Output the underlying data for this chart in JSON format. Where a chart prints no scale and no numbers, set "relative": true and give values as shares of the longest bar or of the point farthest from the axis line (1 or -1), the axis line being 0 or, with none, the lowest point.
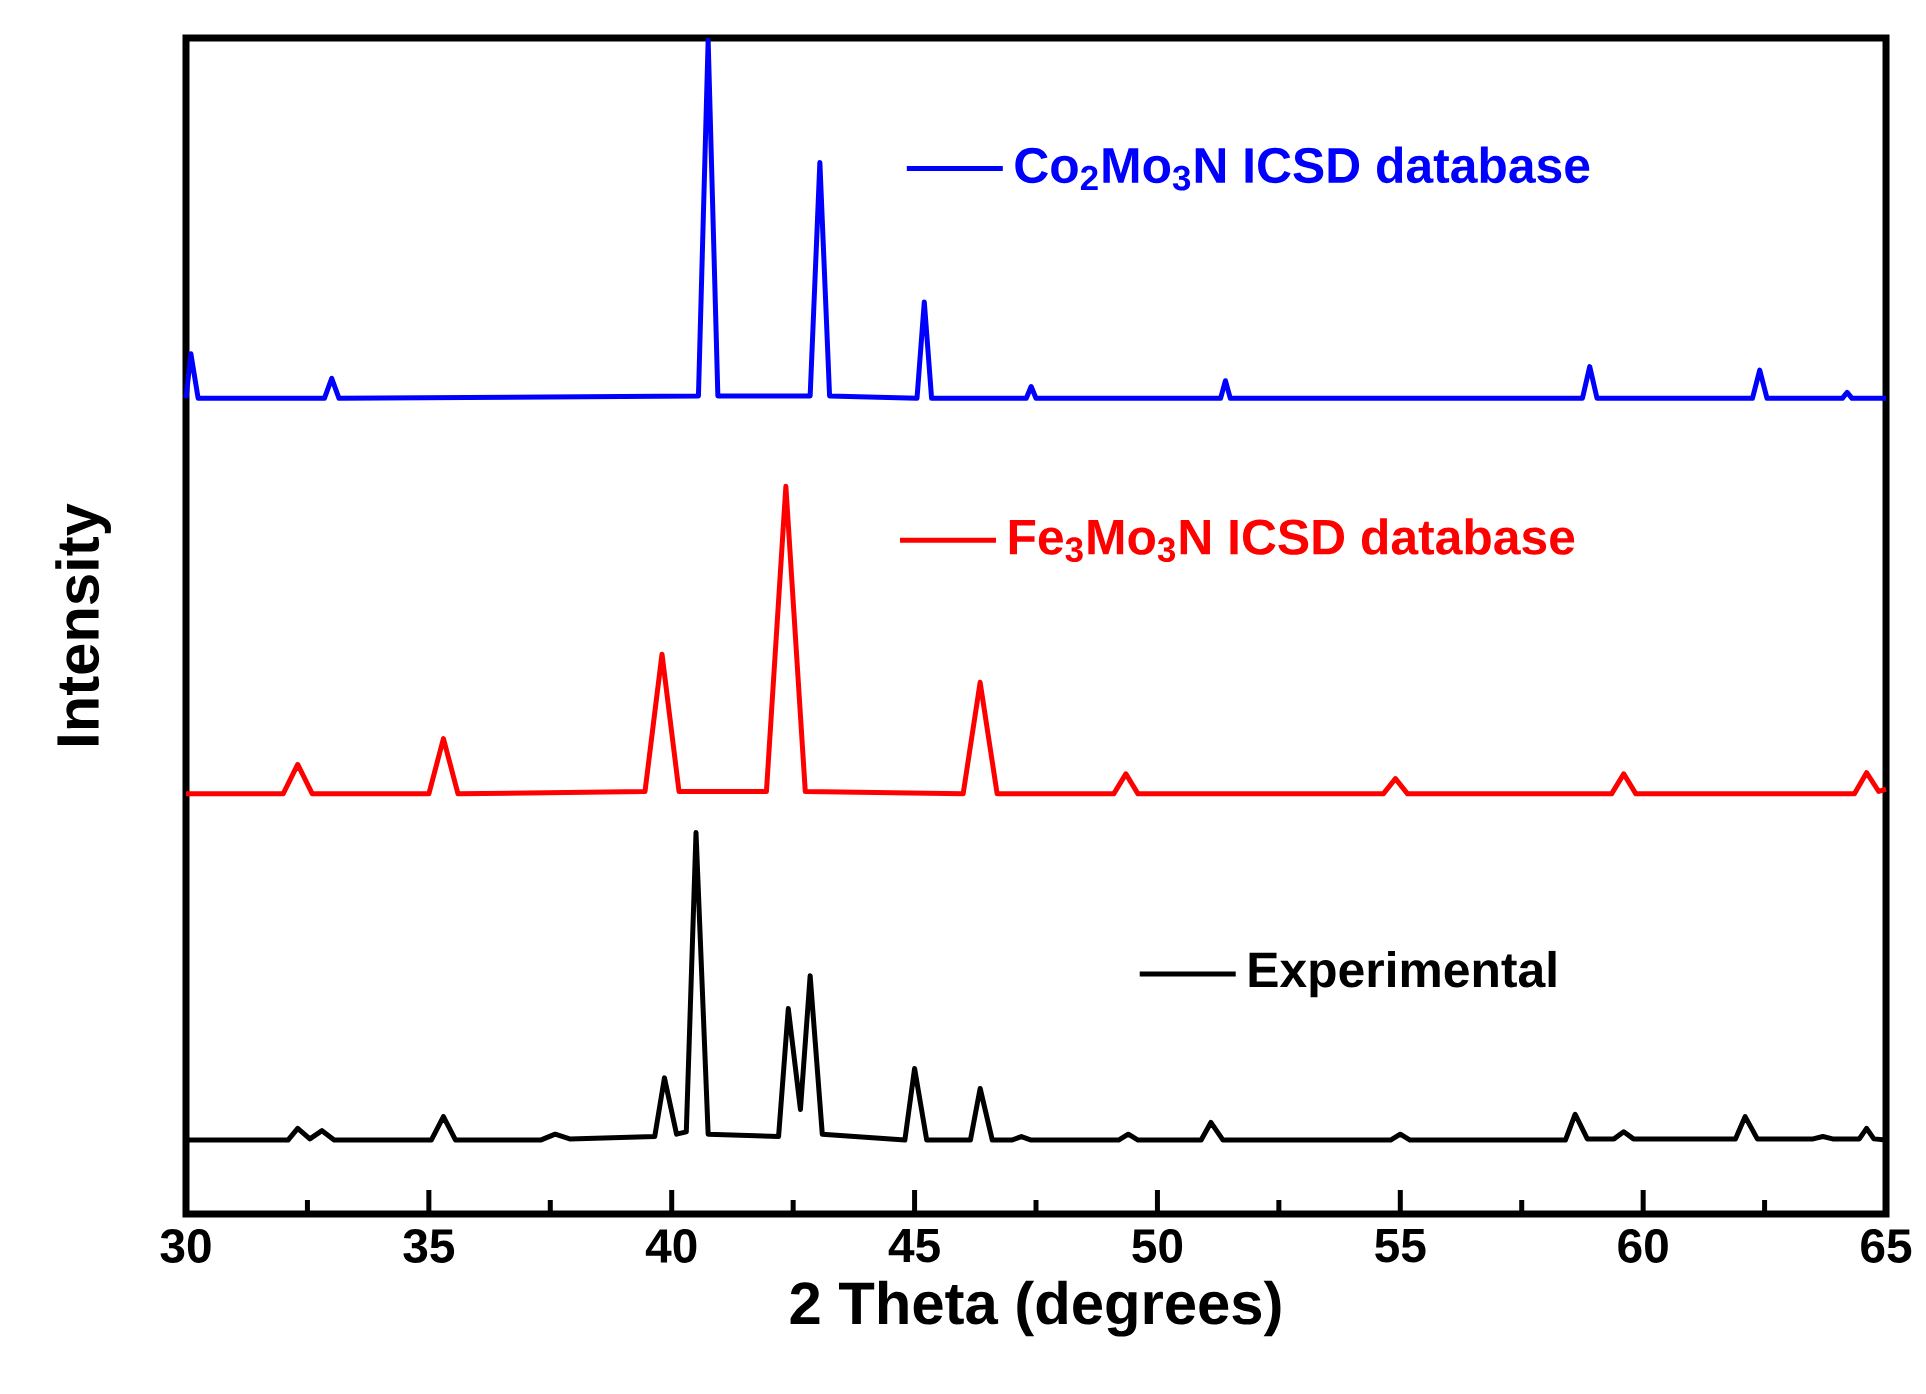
{
  "chart_data": {
    "type": "line",
    "relative": true,
    "xlabel": "2 Theta (degrees)",
    "ylabel": "Intensity",
    "xlim": [
      30,
      65
    ],
    "xticks": [
      30,
      35,
      40,
      45,
      50,
      55,
      60,
      65
    ],
    "tick_labels": "x",
    "legend": "right",
    "series": [
      {
        "name": "Co$_{2}$Mo$_{3}$N ICSD database",
        "color": "#0000ff",
        "x": [
          30.0,
          30.1,
          30.25,
          32.85,
          33.0,
          33.15,
          40.55,
          40.75,
          40.95,
          42.85,
          43.05,
          43.25,
          45.05,
          45.2,
          45.35,
          47.3,
          47.4,
          47.5,
          51.3,
          51.4,
          51.5,
          58.75,
          58.9,
          59.05,
          62.25,
          62.4,
          62.55,
          64.1,
          64.2,
          64.3,
          65.0
        ],
        "values": [
          0.695,
          0.733,
          0.695,
          0.695,
          0.712,
          0.695,
          0.697,
          1.0,
          0.697,
          0.697,
          0.896,
          0.697,
          0.695,
          0.777,
          0.695,
          0.695,
          0.705,
          0.695,
          0.695,
          0.71,
          0.695,
          0.695,
          0.722,
          0.695,
          0.695,
          0.719,
          0.695,
          0.695,
          0.7,
          0.695,
          0.695
        ]
      },
      {
        "name": "Fe$_{3}$Mo$_{3}$N ICSD database",
        "color": "#ff0000",
        "x": [
          30.0,
          32.0,
          32.3,
          32.6,
          35.0,
          35.3,
          35.6,
          39.45,
          39.8,
          40.15,
          41.95,
          42.35,
          42.75,
          46.0,
          46.35,
          46.7,
          49.1,
          49.35,
          49.6,
          54.65,
          54.9,
          55.15,
          59.35,
          59.6,
          59.85,
          64.35,
          64.6,
          64.85,
          65.0
        ],
        "values": [
          0.358,
          0.358,
          0.383,
          0.358,
          0.358,
          0.405,
          0.358,
          0.36,
          0.477,
          0.36,
          0.36,
          0.62,
          0.36,
          0.358,
          0.453,
          0.358,
          0.358,
          0.375,
          0.358,
          0.358,
          0.371,
          0.358,
          0.358,
          0.375,
          0.358,
          0.358,
          0.376,
          0.36,
          0.362
        ]
      },
      {
        "name": "Experimental",
        "color": "#000000",
        "x": [
          30.0,
          32.1,
          32.3,
          32.55,
          32.8,
          33.05,
          35.05,
          35.3,
          35.55,
          37.3,
          37.6,
          37.9,
          39.65,
          39.85,
          40.1,
          40.3,
          40.5,
          40.75,
          42.2,
          42.4,
          42.65,
          42.85,
          43.1,
          44.8,
          45.0,
          45.25,
          46.15,
          46.35,
          46.6,
          47.0,
          47.2,
          47.4,
          49.2,
          49.4,
          49.6,
          50.9,
          51.1,
          51.35,
          54.8,
          55.0,
          55.2,
          58.4,
          58.6,
          58.85,
          59.4,
          59.6,
          59.8,
          61.9,
          62.1,
          62.35,
          63.5,
          63.7,
          63.9,
          64.45,
          64.6,
          64.75,
          65.0
        ],
        "values": [
          0.063,
          0.063,
          0.073,
          0.064,
          0.071,
          0.063,
          0.063,
          0.083,
          0.063,
          0.063,
          0.068,
          0.064,
          0.066,
          0.116,
          0.068,
          0.07,
          0.325,
          0.068,
          0.066,
          0.175,
          0.089,
          0.203,
          0.068,
          0.063,
          0.124,
          0.063,
          0.063,
          0.107,
          0.063,
          0.063,
          0.066,
          0.063,
          0.063,
          0.068,
          0.063,
          0.063,
          0.078,
          0.063,
          0.063,
          0.068,
          0.063,
          0.063,
          0.085,
          0.064,
          0.064,
          0.07,
          0.064,
          0.064,
          0.083,
          0.064,
          0.064,
          0.066,
          0.064,
          0.064,
          0.073,
          0.064,
          0.063
        ]
      }
    ]
  }
}
